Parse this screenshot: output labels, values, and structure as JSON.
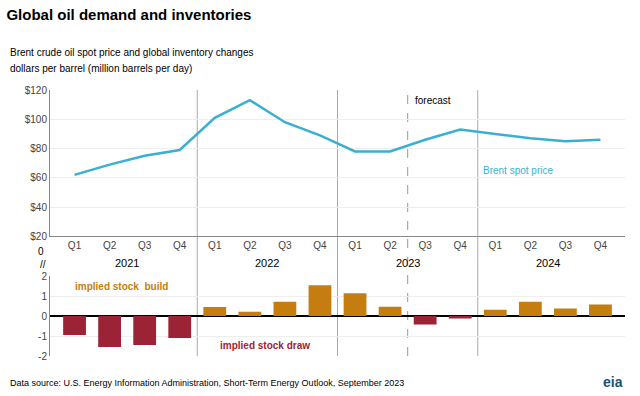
{
  "chart_data": [
    {
      "type": "line",
      "title": "Global oil demand and inventories",
      "subtitle": [
        "Brent crude oil spot price and global inventory changes",
        "dollars per barrel (million barrels per day)"
      ],
      "categories": [
        "Q1",
        "Q2",
        "Q3",
        "Q4",
        "Q1",
        "Q2",
        "Q3",
        "Q4",
        "Q1",
        "Q2",
        "Q3",
        "Q4",
        "Q1",
        "Q2",
        "Q3",
        "Q4"
      ],
      "category_groups": [
        "2021",
        "2022",
        "2023",
        "2024"
      ],
      "series": [
        {
          "name": "Brent spot price",
          "color": "#3ab0d0",
          "values": [
            62,
            69,
            75,
            79,
            101,
            113,
            98,
            89,
            78,
            78,
            86,
            93,
            90,
            87,
            85,
            86
          ]
        }
      ],
      "ylim": [
        20,
        120
      ],
      "yticks": [
        {
          "value": 20,
          "label": "$20"
        },
        {
          "value": 40,
          "label": "$40"
        },
        {
          "value": 60,
          "label": "$60"
        },
        {
          "value": 80,
          "label": "$80"
        },
        {
          "value": 100,
          "label": "$100"
        },
        {
          "value": 120,
          "label": "$120"
        }
      ],
      "grid": true,
      "annotations": [
        {
          "text": "forecast"
        },
        {
          "text": "0"
        },
        {
          "text": "//"
        }
      ],
      "footnote": "Data source: U.S. Energy Information Administration, Short-Term Energy Outlook, September 2023",
      "logo": {
        "text": "eia",
        "color": "#1a5276"
      }
    },
    {
      "type": "bar",
      "categories": [
        "Q1",
        "Q2",
        "Q3",
        "Q4",
        "Q1",
        "Q2",
        "Q3",
        "Q4",
        "Q1",
        "Q2",
        "Q3",
        "Q4",
        "Q1",
        "Q2",
        "Q3",
        "Q4"
      ],
      "series": [
        {
          "values": [
            -0.95,
            -1.55,
            -1.45,
            -1.1,
            0.45,
            0.22,
            0.72,
            1.55,
            1.15,
            0.47,
            null,
            null,
            null,
            null,
            null,
            null
          ],
          "colors": [
            "#9b2335",
            "#9b2335",
            "#9b2335",
            "#9b2335",
            "#c47d0e",
            "#c47d0e",
            "#c47d0e",
            "#c47d0e",
            "#c47d0e",
            "#c47d0e",
            null,
            null,
            null,
            null,
            null,
            null
          ]
        },
        {
          "values": [
            null,
            null,
            null,
            null,
            null,
            null,
            null,
            null,
            null,
            null,
            -0.42,
            -0.12,
            0.32,
            0.72,
            0.38,
            0.58
          ],
          "colors": [
            null,
            null,
            null,
            null,
            null,
            null,
            null,
            null,
            null,
            null,
            "#9b2335",
            "#9b2335",
            "#c47d0e",
            "#c47d0e",
            "#c47d0e",
            "#c47d0e"
          ]
        }
      ],
      "ylim": [
        -2,
        2
      ],
      "yticks": [
        -2,
        -1,
        0,
        1,
        2
      ],
      "grid": true,
      "tick_labels": "y",
      "annotations": [
        {
          "text": "implied stock  build",
          "color": "#c47d0e"
        },
        {
          "text": "implied stock draw",
          "color": "#9b2335"
        }
      ]
    }
  ]
}
